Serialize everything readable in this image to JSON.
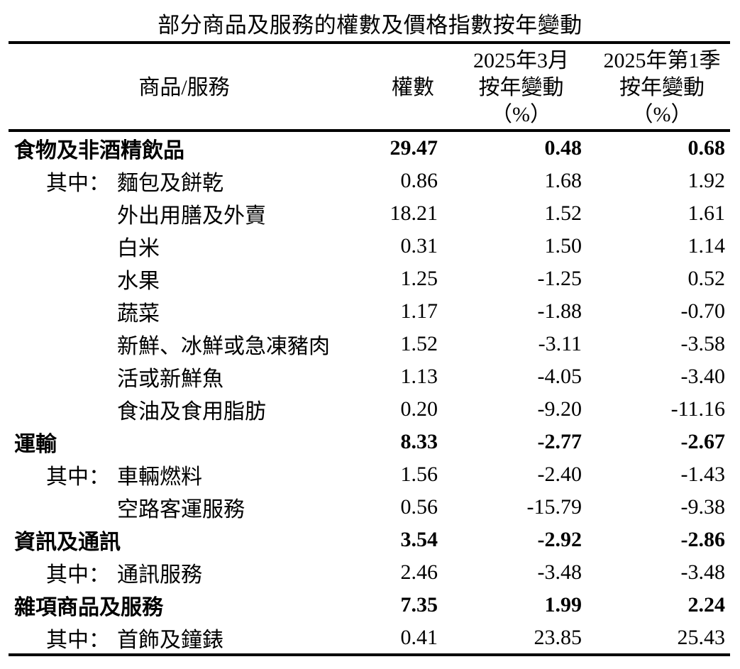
{
  "title": "部分商品及服務的權數及價格指數按年變動",
  "table": {
    "headers": {
      "item": "商品/服務",
      "weight": "權數",
      "mar_period": "2025年3月",
      "mar_label": "按年變動",
      "mar_unit": "（%）",
      "q1_period": "2025年第1季",
      "q1_label": "按年變動",
      "q1_unit": "（%）"
    },
    "rows": [
      {
        "category": true,
        "prefix": "",
        "label": "食物及非酒精飲品",
        "weight": "29.47",
        "mar_2025_yoy": "0.48",
        "q1_2025_yoy": "0.68"
      },
      {
        "category": false,
        "prefix": "其中：",
        "label": "麵包及餅乾",
        "weight": "0.86",
        "mar_2025_yoy": "1.68",
        "q1_2025_yoy": "1.92"
      },
      {
        "category": false,
        "prefix": "",
        "label": "外出用膳及外賣",
        "weight": "18.21",
        "mar_2025_yoy": "1.52",
        "q1_2025_yoy": "1.61"
      },
      {
        "category": false,
        "prefix": "",
        "label": "白米",
        "weight": "0.31",
        "mar_2025_yoy": "1.50",
        "q1_2025_yoy": "1.14"
      },
      {
        "category": false,
        "prefix": "",
        "label": "水果",
        "weight": "1.25",
        "mar_2025_yoy": "-1.25",
        "q1_2025_yoy": "0.52"
      },
      {
        "category": false,
        "prefix": "",
        "label": "蔬菜",
        "weight": "1.17",
        "mar_2025_yoy": "-1.88",
        "q1_2025_yoy": "-0.70"
      },
      {
        "category": false,
        "prefix": "",
        "label": "新鮮、冰鮮或急凍豬肉",
        "weight": "1.52",
        "mar_2025_yoy": "-3.11",
        "q1_2025_yoy": "-3.58"
      },
      {
        "category": false,
        "prefix": "",
        "label": "活或新鮮魚",
        "weight": "1.13",
        "mar_2025_yoy": "-4.05",
        "q1_2025_yoy": "-3.40"
      },
      {
        "category": false,
        "prefix": "",
        "label": "食油及食用脂肪",
        "weight": "0.20",
        "mar_2025_yoy": "-9.20",
        "q1_2025_yoy": "-11.16"
      },
      {
        "category": true,
        "prefix": "",
        "label": "運輸",
        "weight": "8.33",
        "mar_2025_yoy": "-2.77",
        "q1_2025_yoy": "-2.67"
      },
      {
        "category": false,
        "prefix": "其中：",
        "label": "車輛燃料",
        "weight": "1.56",
        "mar_2025_yoy": "-2.40",
        "q1_2025_yoy": "-1.43"
      },
      {
        "category": false,
        "prefix": "",
        "label": "空路客運服務",
        "weight": "0.56",
        "mar_2025_yoy": "-15.79",
        "q1_2025_yoy": "-9.38"
      },
      {
        "category": true,
        "prefix": "",
        "label": "資訊及通訊",
        "weight": "3.54",
        "mar_2025_yoy": "-2.92",
        "q1_2025_yoy": "-2.86"
      },
      {
        "category": false,
        "prefix": "其中：",
        "label": "通訊服務",
        "weight": "2.46",
        "mar_2025_yoy": "-3.48",
        "q1_2025_yoy": "-3.48"
      },
      {
        "category": true,
        "prefix": "",
        "label": "雜項商品及服務",
        "weight": "7.35",
        "mar_2025_yoy": "1.99",
        "q1_2025_yoy": "2.24"
      },
      {
        "category": false,
        "prefix": "其中：",
        "label": "首飾及鐘錶",
        "weight": "0.41",
        "mar_2025_yoy": "23.85",
        "q1_2025_yoy": "25.43"
      }
    ]
  }
}
